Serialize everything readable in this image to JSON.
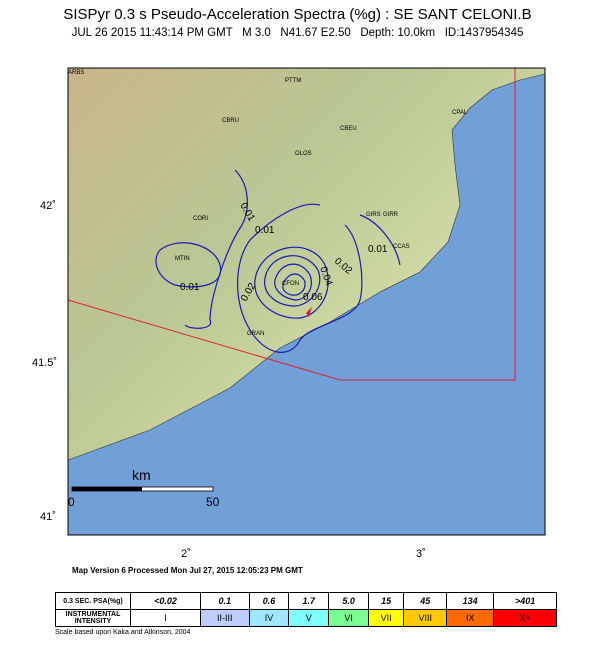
{
  "header": {
    "title": "SISPyr 0.3 s Pseudo-Acceleration Spectra (%g) : SE SANT CELONI.B",
    "subtitle": "JUL 26 2015 11:43:14 PM GMT   M 3.0   N41.67 E2.50   Depth: 10.0km   ID:1437954345"
  },
  "map": {
    "lat_labels": [
      "42˚",
      "41.5˚",
      "41˚"
    ],
    "lon_labels": [
      "2˚",
      "3˚"
    ],
    "scale": {
      "unit": "km",
      "start": "0",
      "end": "50"
    },
    "stations": [
      "ARBS",
      "PTTM",
      "CBRU",
      "CBEU",
      "CPAL",
      "OLOS",
      "CORI",
      "GIRS",
      "GIRR",
      "CCAS",
      "MTIN",
      "CFON",
      "GRAN"
    ],
    "contour_labels": [
      "0.01",
      "0.01",
      "0.01",
      "0.01",
      "0.02",
      "0.02",
      "0.04",
      "0.06"
    ]
  },
  "footer": {
    "version": "Map Version 6 Processed Mon Jul 27, 2015 12:05:23 PM GMT",
    "note": "Scale based upon Kaka and Atkinson, 2004"
  },
  "legend": {
    "rows": [
      {
        "label": "0.3 SEC. PSA(%g)",
        "cells": [
          "<0.02",
          "0.1",
          "0.6",
          "1.7",
          "5.0",
          "15",
          "45",
          "134",
          ">401"
        ]
      },
      {
        "label": "INSTRUMENTAL INTENSITY",
        "cells": [
          "I",
          "II-III",
          "IV",
          "V",
          "VI",
          "VII",
          "VIII",
          "IX",
          "X+"
        ]
      }
    ]
  }
}
